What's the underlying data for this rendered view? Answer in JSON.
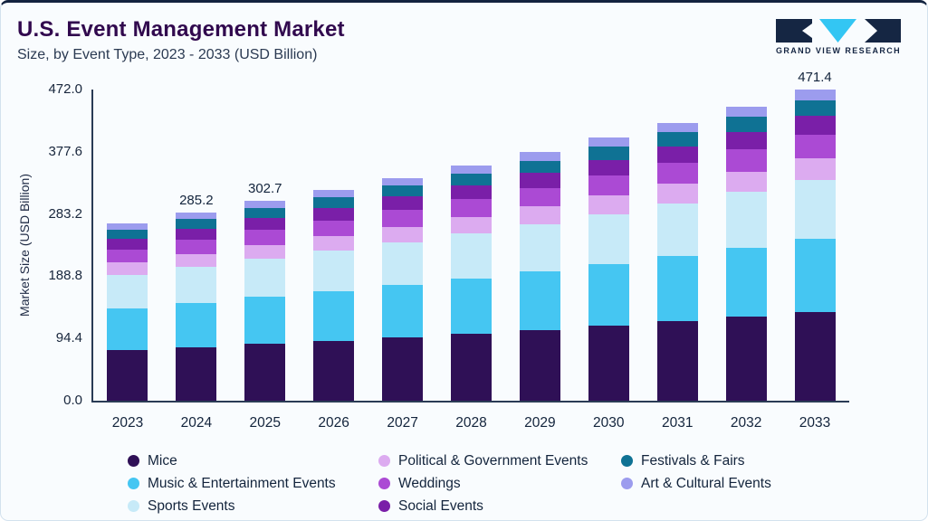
{
  "header": {
    "title": "U.S. Event Management Market",
    "subtitle": "Size, by Event Type, 2023 - 2033 (USD Billion)",
    "logo_text": "GRAND VIEW RESEARCH"
  },
  "chart_data": {
    "type": "bar",
    "stacked": true,
    "title": "U.S. Event Management Market",
    "subtitle": "Size, by Event Type, 2023 - 2033 (USD Billion)",
    "xlabel": "",
    "ylabel": "Market Size (USD Billion)",
    "ylim": [
      0,
      472.0
    ],
    "ytick_labels": [
      "472.0",
      "377.6",
      "283.2",
      "188.8",
      "94.4",
      "0.0"
    ],
    "grid": false,
    "legend_position": "bottom",
    "categories": [
      "2023",
      "2024",
      "2025",
      "2026",
      "2027",
      "2028",
      "2029",
      "2030",
      "2031",
      "2032",
      "2033"
    ],
    "bar_total_labels": {
      "2024": "285.2",
      "2025": "302.7",
      "2033": "471.4"
    },
    "series": [
      {
        "name": "Mice",
        "color": "#2f1056",
        "values": [
          76.6,
          81.3,
          86.3,
          91.2,
          96.4,
          101.9,
          107.6,
          113.8,
          120.2,
          127.1,
          134.4
        ]
      },
      {
        "name": "Music & Entertainment Events",
        "color": "#45c6f2",
        "values": [
          63.1,
          67.0,
          71.1,
          75.2,
          79.5,
          84.0,
          88.8,
          93.8,
          99.1,
          104.8,
          110.8
        ]
      },
      {
        "name": "Sports Events",
        "color": "#c7eaf8",
        "values": [
          51.0,
          54.2,
          57.5,
          60.8,
          64.2,
          67.9,
          71.8,
          75.8,
          80.2,
          84.7,
          89.6
        ]
      },
      {
        "name": "Political & Government Events",
        "color": "#dcabf0",
        "values": [
          18.8,
          20.0,
          21.2,
          22.4,
          23.7,
          25.0,
          26.4,
          27.9,
          29.5,
          31.2,
          33.0
        ]
      },
      {
        "name": "Weddings",
        "color": "#ab4ad4",
        "values": [
          20.1,
          21.4,
          22.7,
          24.0,
          25.4,
          26.8,
          28.3,
          29.9,
          31.6,
          33.5,
          35.4
        ]
      },
      {
        "name": "Social Events",
        "color": "#7a1fa8",
        "values": [
          16.1,
          17.1,
          18.2,
          19.2,
          20.3,
          21.4,
          22.7,
          24.0,
          25.3,
          26.8,
          28.3
        ]
      },
      {
        "name": "Festivals & Fairs",
        "color": "#0f7294",
        "values": [
          13.4,
          14.3,
          15.1,
          16.0,
          16.9,
          17.9,
          18.9,
          20.0,
          21.1,
          22.3,
          23.6
        ]
      },
      {
        "name": "Art & Cultural Events",
        "color": "#9c9cee",
        "values": [
          9.4,
          10.0,
          10.6,
          11.2,
          11.8,
          12.5,
          13.2,
          14.0,
          14.8,
          15.6,
          16.5
        ]
      }
    ]
  },
  "colors": {
    "top_border": "#13233f",
    "title": "#31094e",
    "text": "#13243c",
    "axis": "#2a3b55",
    "background": "#f9fcfe",
    "logo_navy": "#152643",
    "logo_cyan": "#33c6f3"
  }
}
